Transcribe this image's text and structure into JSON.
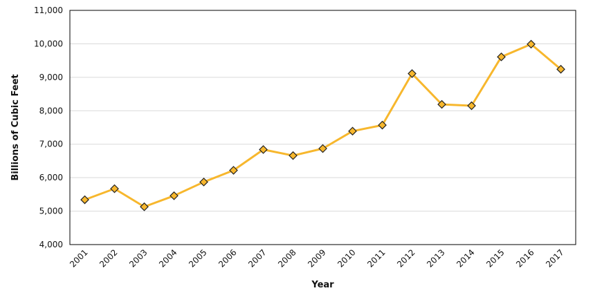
{
  "chart_data": {
    "type": "line",
    "title": "",
    "xlabel": "Year",
    "ylabel": "Billions of Cubic Feet",
    "ylim": [
      4000,
      11000
    ],
    "yticks": [
      4000,
      5000,
      6000,
      7000,
      8000,
      9000,
      10000,
      11000
    ],
    "ytick_labels": [
      "4,000",
      "5,000",
      "6,000",
      "7,000",
      "8,000",
      "9,000",
      "10,000",
      "11,000"
    ],
    "grid": true,
    "categories": [
      "2001",
      "2002",
      "2003",
      "2004",
      "2005",
      "2006",
      "2007",
      "2008",
      "2009",
      "2010",
      "2011",
      "2012",
      "2013",
      "2014",
      "2015",
      "2016",
      "2017"
    ],
    "series": [
      {
        "name": "Billions of Cubic Feet",
        "values": [
          5340,
          5670,
          5130,
          5460,
          5870,
          6220,
          6840,
          6660,
          6870,
          7390,
          7570,
          9110,
          8190,
          8150,
          9610,
          9990,
          9240
        ]
      }
    ],
    "colors": {
      "line": "#F7B72D",
      "marker_fill": "#F7B72D",
      "marker_stroke": "#222222",
      "grid": "#D9D9D9",
      "axis": "#000000"
    }
  }
}
